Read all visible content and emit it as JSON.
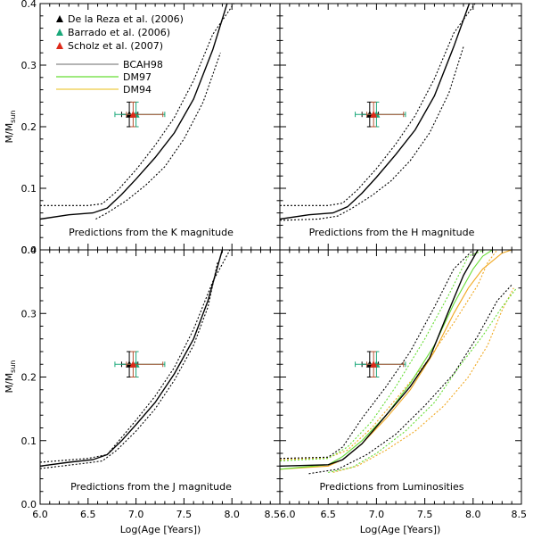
{
  "chart_data": {
    "type": "line",
    "x_axis": {
      "label": "Log(Age [Years])",
      "range": [
        6.0,
        8.5
      ],
      "ticks": [
        "6.0",
        "6.5",
        "7.0",
        "7.5",
        "8.0",
        "8.5"
      ]
    },
    "y_axis": {
      "label_main": "M/M",
      "label_sub": "sun",
      "range": [
        0.0,
        0.4
      ],
      "ticks": [
        "0.0",
        "0.1",
        "0.2",
        "0.3",
        "0.4"
      ]
    },
    "legend": {
      "placement": "top-left",
      "markers": [
        {
          "label": "De la Reza et al. (2006)",
          "color": "#000000"
        },
        {
          "label": "Barrado et al. (2006)",
          "color": "#1aa87a"
        },
        {
          "label": "Scholz et al. (2007)",
          "color": "#dd2a1a"
        }
      ],
      "lines": [
        {
          "label": "BCAH98",
          "color": "#888888"
        },
        {
          "label": "DM97",
          "color": "#66dd33"
        },
        {
          "label": "DM94",
          "color": "#eecc44"
        }
      ]
    },
    "colors": {
      "bcah98": "#000000",
      "dm97": "#66dd33",
      "dm94": "#f0a820",
      "delareza": "#000000",
      "barrado": "#1aa87a",
      "scholz": "#dd2a1a",
      "scholz_err": "#b05030"
    },
    "points": [
      {
        "name": "De la Reza et al. (2006)",
        "x": 6.93,
        "y": 0.22,
        "xerr": [
          6.85,
          7.02
        ],
        "yerr": [
          0.2,
          0.24
        ]
      },
      {
        "name": "Barrado et al. (2006)",
        "x": 7.0,
        "y": 0.22,
        "xerr": [
          6.78,
          7.3
        ],
        "yerr": [
          0.2,
          0.24
        ]
      },
      {
        "name": "Scholz et al. (2007)",
        "x": 6.97,
        "y": 0.22,
        "xerr": [
          6.9,
          7.28
        ],
        "yerr": [
          0.2,
          0.24
        ]
      }
    ],
    "panels": [
      {
        "caption": "Predictions from the K magnitude",
        "show_legend": true,
        "series": [
          {
            "model": "bcah98",
            "style": "solid",
            "x": [
              6.0,
              6.3,
              6.55,
              6.7,
              6.85,
              7.0,
              7.2,
              7.4,
              7.6,
              7.8,
              7.95
            ],
            "y": [
              0.05,
              0.057,
              0.06,
              0.068,
              0.09,
              0.115,
              0.15,
              0.19,
              0.245,
              0.325,
              0.4
            ]
          },
          {
            "model": "bcah98",
            "style": "dotted",
            "x": [
              6.0,
              6.5,
              6.65,
              6.8,
              7.0,
              7.2,
              7.4,
              7.6,
              7.8,
              8.02
            ],
            "y": [
              0.072,
              0.072,
              0.075,
              0.095,
              0.13,
              0.17,
              0.215,
              0.275,
              0.35,
              0.4
            ]
          },
          {
            "model": "bcah98",
            "style": "dotted",
            "x": [
              6.58,
              6.7,
              6.9,
              7.1,
              7.3,
              7.5,
              7.7,
              7.88
            ],
            "y": [
              0.05,
              0.06,
              0.08,
              0.105,
              0.135,
              0.18,
              0.24,
              0.32
            ]
          }
        ]
      },
      {
        "caption": "Predictions from the H magnitude",
        "show_legend": false,
        "series": [
          {
            "model": "bcah98",
            "style": "solid",
            "x": [
              6.0,
              6.3,
              6.55,
              6.7,
              6.85,
              7.0,
              7.2,
              7.4,
              7.6,
              7.8,
              7.96
            ],
            "y": [
              0.05,
              0.057,
              0.06,
              0.07,
              0.092,
              0.118,
              0.155,
              0.195,
              0.25,
              0.33,
              0.4
            ]
          },
          {
            "model": "bcah98",
            "style": "dotted",
            "x": [
              6.0,
              6.5,
              6.65,
              6.8,
              7.0,
              7.2,
              7.4,
              7.6,
              7.8,
              8.02
            ],
            "y": [
              0.072,
              0.072,
              0.076,
              0.097,
              0.132,
              0.172,
              0.218,
              0.278,
              0.352,
              0.4
            ]
          },
          {
            "model": "bcah98",
            "style": "dotted",
            "x": [
              6.0,
              6.4,
              6.6,
              6.75,
              6.95,
              7.15,
              7.35,
              7.55,
              7.75,
              7.9
            ],
            "y": [
              0.048,
              0.05,
              0.055,
              0.068,
              0.088,
              0.112,
              0.145,
              0.19,
              0.255,
              0.33
            ]
          }
        ]
      },
      {
        "caption": "Predictions from the J magnitude",
        "show_legend": false,
        "series": [
          {
            "model": "bcah98",
            "style": "solid",
            "x": [
              6.0,
              6.3,
              6.55,
              6.7,
              6.85,
              7.0,
              7.2,
              7.4,
              7.6,
              7.75,
              7.9
            ],
            "y": [
              0.06,
              0.066,
              0.07,
              0.078,
              0.1,
              0.125,
              0.16,
              0.205,
              0.26,
              0.32,
              0.4
            ]
          },
          {
            "model": "bcah98",
            "style": "dotted",
            "x": [
              6.0,
              6.5,
              6.7,
              6.85,
              7.0,
              7.2,
              7.4,
              7.6,
              7.8,
              7.98
            ],
            "y": [
              0.066,
              0.072,
              0.078,
              0.105,
              0.132,
              0.17,
              0.215,
              0.275,
              0.35,
              0.4
            ]
          },
          {
            "model": "bcah98",
            "style": "dotted",
            "x": [
              6.0,
              6.5,
              6.65,
              6.8,
              7.0,
              7.2,
              7.4,
              7.6,
              7.75,
              7.85
            ],
            "y": [
              0.056,
              0.065,
              0.068,
              0.085,
              0.115,
              0.15,
              0.195,
              0.25,
              0.31,
              0.38
            ]
          }
        ]
      },
      {
        "caption": "Predictions from Luminosities",
        "show_legend": false,
        "series": [
          {
            "model": "dm94",
            "style": "dotted",
            "x": [
              6.0,
              6.5,
              6.7,
              6.95,
              7.2,
              7.5,
              7.8,
              8.05,
              8.15,
              8.25
            ],
            "y": [
              0.07,
              0.073,
              0.085,
              0.12,
              0.165,
              0.22,
              0.285,
              0.345,
              0.38,
              0.4
            ]
          },
          {
            "model": "dm94",
            "style": "dotted",
            "x": [
              6.55,
              6.8,
              7.1,
              7.4,
              7.7,
              7.95,
              8.15,
              8.3,
              8.42
            ],
            "y": [
              0.05,
              0.06,
              0.085,
              0.115,
              0.155,
              0.2,
              0.25,
              0.305,
              0.34
            ]
          },
          {
            "model": "dm97",
            "style": "dotted",
            "x": [
              6.0,
              6.5,
              6.7,
              6.95,
              7.2,
              7.5,
              7.75,
              7.95,
              8.12
            ],
            "y": [
              0.068,
              0.072,
              0.09,
              0.13,
              0.185,
              0.26,
              0.33,
              0.39,
              0.4
            ]
          },
          {
            "model": "dm97",
            "style": "dotted",
            "x": [
              6.5,
              6.75,
              7.0,
              7.3,
              7.6,
              7.85,
              8.1,
              8.3,
              8.45
            ],
            "y": [
              0.05,
              0.058,
              0.08,
              0.115,
              0.16,
              0.215,
              0.265,
              0.31,
              0.34
            ]
          },
          {
            "model": "bcah98",
            "style": "dotted",
            "x": [
              6.0,
              6.5,
              6.65,
              6.85,
              7.1,
              7.35,
              7.6,
              7.8,
              8.0
            ],
            "y": [
              0.072,
              0.074,
              0.09,
              0.135,
              0.185,
              0.24,
              0.31,
              0.37,
              0.4
            ]
          },
          {
            "model": "bcah98",
            "style": "dotted",
            "x": [
              6.3,
              6.6,
              6.9,
              7.2,
              7.5,
              7.8,
              8.05,
              8.25,
              8.4
            ],
            "y": [
              0.048,
              0.055,
              0.078,
              0.11,
              0.155,
              0.205,
              0.265,
              0.32,
              0.345
            ]
          },
          {
            "model": "dm94",
            "style": "solid",
            "x": [
              6.0,
              6.5,
              6.65,
              6.85,
              7.1,
              7.35,
              7.6,
              7.8,
              7.95,
              8.1,
              8.3,
              8.4
            ],
            "y": [
              0.055,
              0.06,
              0.07,
              0.095,
              0.135,
              0.18,
              0.24,
              0.3,
              0.34,
              0.37,
              0.395,
              0.4
            ]
          },
          {
            "model": "dm97",
            "style": "solid",
            "x": [
              6.0,
              6.5,
              6.65,
              6.85,
              7.1,
              7.35,
              7.6,
              7.8,
              8.0,
              8.1,
              8.2
            ],
            "y": [
              0.055,
              0.062,
              0.075,
              0.1,
              0.14,
              0.19,
              0.25,
              0.315,
              0.37,
              0.39,
              0.4
            ]
          },
          {
            "model": "bcah98",
            "style": "solid",
            "x": [
              6.0,
              6.5,
              6.65,
              6.85,
              7.1,
              7.35,
              7.55,
              7.75,
              7.9,
              8.05
            ],
            "y": [
              0.06,
              0.062,
              0.07,
              0.095,
              0.14,
              0.185,
              0.23,
              0.305,
              0.36,
              0.4
            ]
          }
        ]
      }
    ]
  }
}
